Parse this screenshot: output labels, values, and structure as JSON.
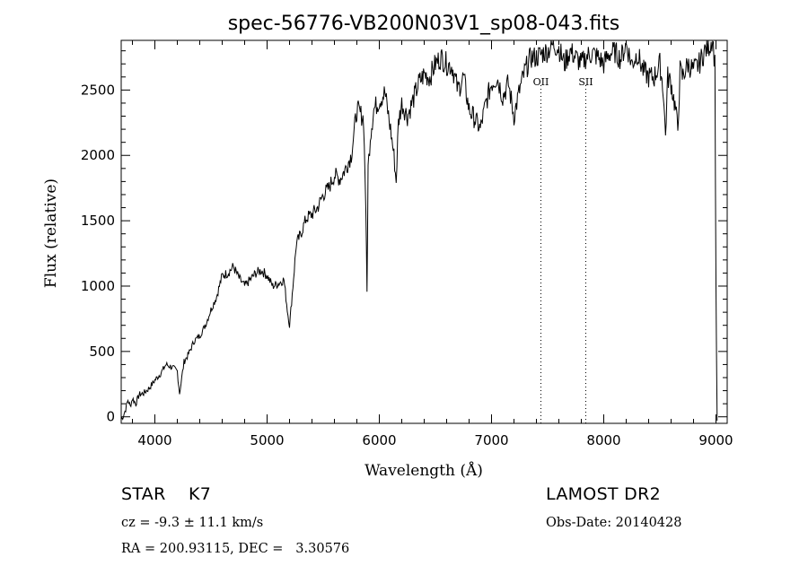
{
  "chart_data": {
    "type": "line",
    "title": "spec-56776-VB200N03V1_sp08-043.fits",
    "xlabel": "Wavelength (Å)",
    "ylabel": "Flux (relative)",
    "xlim": [
      3700,
      9100
    ],
    "ylim": [
      -50,
      2880
    ],
    "xticks": [
      4000,
      5000,
      6000,
      7000,
      8000,
      9000
    ],
    "yticks": [
      0,
      500,
      1000,
      1500,
      2000,
      2500
    ],
    "grid": false,
    "series": [
      {
        "x": [
          3700,
          3720,
          3740,
          3760,
          3780,
          3800,
          3830,
          3860,
          3900,
          3950,
          4000,
          4050,
          4100,
          4150,
          4200,
          4220,
          4240,
          4260,
          4300,
          4350,
          4400,
          4450,
          4500,
          4550,
          4600,
          4650,
          4700,
          4750,
          4800,
          4850,
          4900,
          4950,
          5000,
          5050,
          5100,
          5150,
          5180,
          5200,
          5230,
          5260,
          5300,
          5350,
          5400,
          5450,
          5500,
          5550,
          5600,
          5650,
          5700,
          5750,
          5800,
          5830,
          5860,
          5880,
          5890,
          5900,
          5920,
          5950,
          6000,
          6050,
          6100,
          6130,
          6150,
          6170,
          6200,
          6250,
          6300,
          6350,
          6400,
          6450,
          6500,
          6550,
          6600,
          6650,
          6700,
          6750,
          6800,
          6850,
          6900,
          6950,
          7000,
          7050,
          7100,
          7150,
          7200,
          7250,
          7300,
          7350,
          7400,
          7450,
          7500,
          7550,
          7600,
          7650,
          7700,
          7750,
          7800,
          7850,
          7900,
          7950,
          8000,
          8050,
          8100,
          8150,
          8200,
          8250,
          8300,
          8350,
          8400,
          8450,
          8500,
          8530,
          8550,
          8570,
          8600,
          8640,
          8660,
          8680,
          8700,
          8750,
          8800,
          8850,
          8900,
          8950,
          8970,
          8990,
          9000,
          9010
        ],
        "y": [
          -20,
          10,
          60,
          130,
          80,
          140,
          100,
          170,
          180,
          220,
          280,
          330,
          400,
          380,
          350,
          180,
          300,
          420,
          480,
          580,
          620,
          700,
          820,
          920,
          1080,
          1100,
          1150,
          1060,
          1000,
          1050,
          1100,
          1120,
          1080,
          1000,
          1020,
          1050,
          820,
          700,
          1000,
          1320,
          1400,
          1520,
          1550,
          1600,
          1700,
          1750,
          1850,
          1820,
          1900,
          2000,
          2350,
          2320,
          2280,
          1600,
          950,
          1900,
          2150,
          2350,
          2420,
          2480,
          2200,
          2000,
          1800,
          2250,
          2400,
          2300,
          2420,
          2550,
          2620,
          2600,
          2700,
          2750,
          2700,
          2680,
          2500,
          2600,
          2350,
          2280,
          2200,
          2400,
          2550,
          2600,
          2450,
          2550,
          2300,
          2500,
          2650,
          2750,
          2750,
          2780,
          2800,
          2850,
          2820,
          2700,
          2800,
          2750,
          2700,
          2760,
          2780,
          2750,
          2700,
          2780,
          2790,
          2740,
          2850,
          2700,
          2780,
          2650,
          2600,
          2600,
          2700,
          2500,
          2150,
          2600,
          2550,
          2350,
          2200,
          2650,
          2600,
          2700,
          2650,
          2700,
          2800,
          2850,
          2900,
          2700,
          1000,
          -30
        ]
      }
    ],
    "annotations": [
      {
        "label": "OII",
        "x": 7440
      },
      {
        "label": "SII",
        "x": 7840
      }
    ]
  },
  "info": {
    "object_type": "STAR",
    "subclass": "K7",
    "survey": "LAMOST DR2",
    "cz": "cz = -9.3 ± 11.1 km/s",
    "obs_date": "Obs-Date: 20140428",
    "radec": "RA = 200.93115, DEC =   3.30576"
  }
}
